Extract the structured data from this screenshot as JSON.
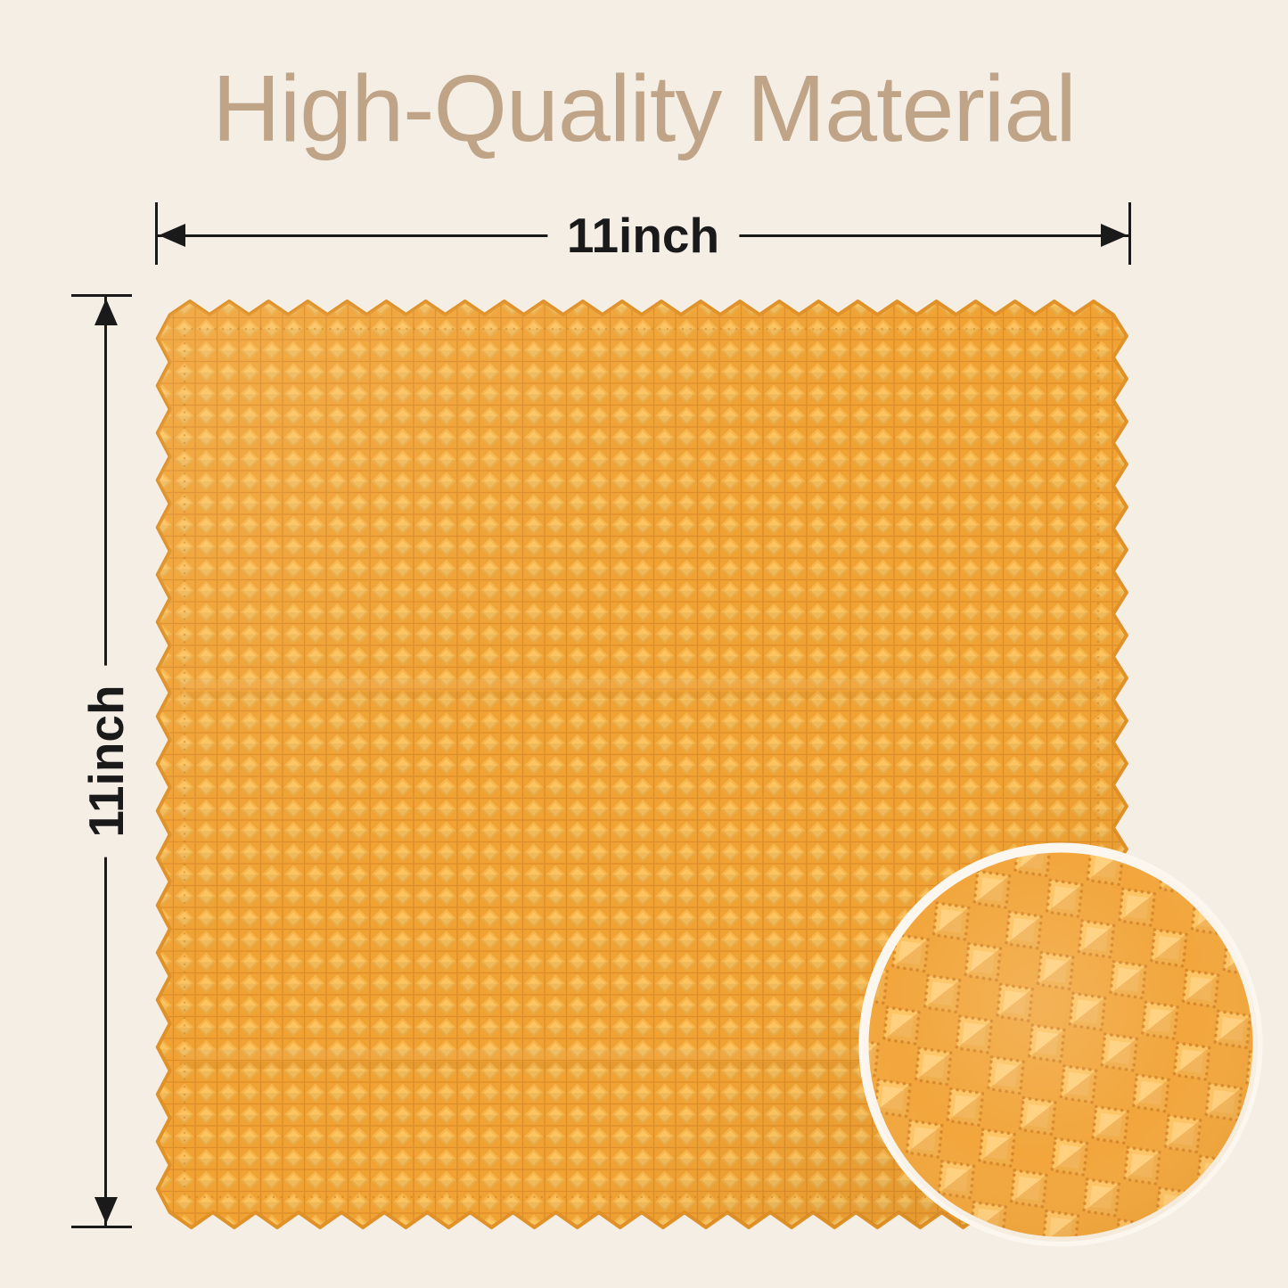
{
  "page": {
    "background_color": "#f5eee5",
    "dimension_color": "#1a1a1a"
  },
  "title": {
    "text": "High-Quality Material",
    "color": "#bfa488"
  },
  "dimension_width": {
    "label": "11inch"
  },
  "dimension_height": {
    "label": "11inch"
  },
  "cloth": {
    "alt": "yellow waffle-weave microfiber cloth with zigzag edges",
    "base": "#f0a233",
    "bump_light": "#f6b44b",
    "bump_lighter": "#fcc35f",
    "grid": "#dd8d2b",
    "edge": "#e09127",
    "stitch": "#cb7e1e"
  },
  "inset": {
    "alt": "magnified circular detail of the fabric texture",
    "base": "#f2a63c",
    "leaf": "#fdc463",
    "leaf_core": "#ffd283",
    "shadow": "#e2932c",
    "stitch": "#d9882a",
    "ring": "#fbf6ee"
  }
}
